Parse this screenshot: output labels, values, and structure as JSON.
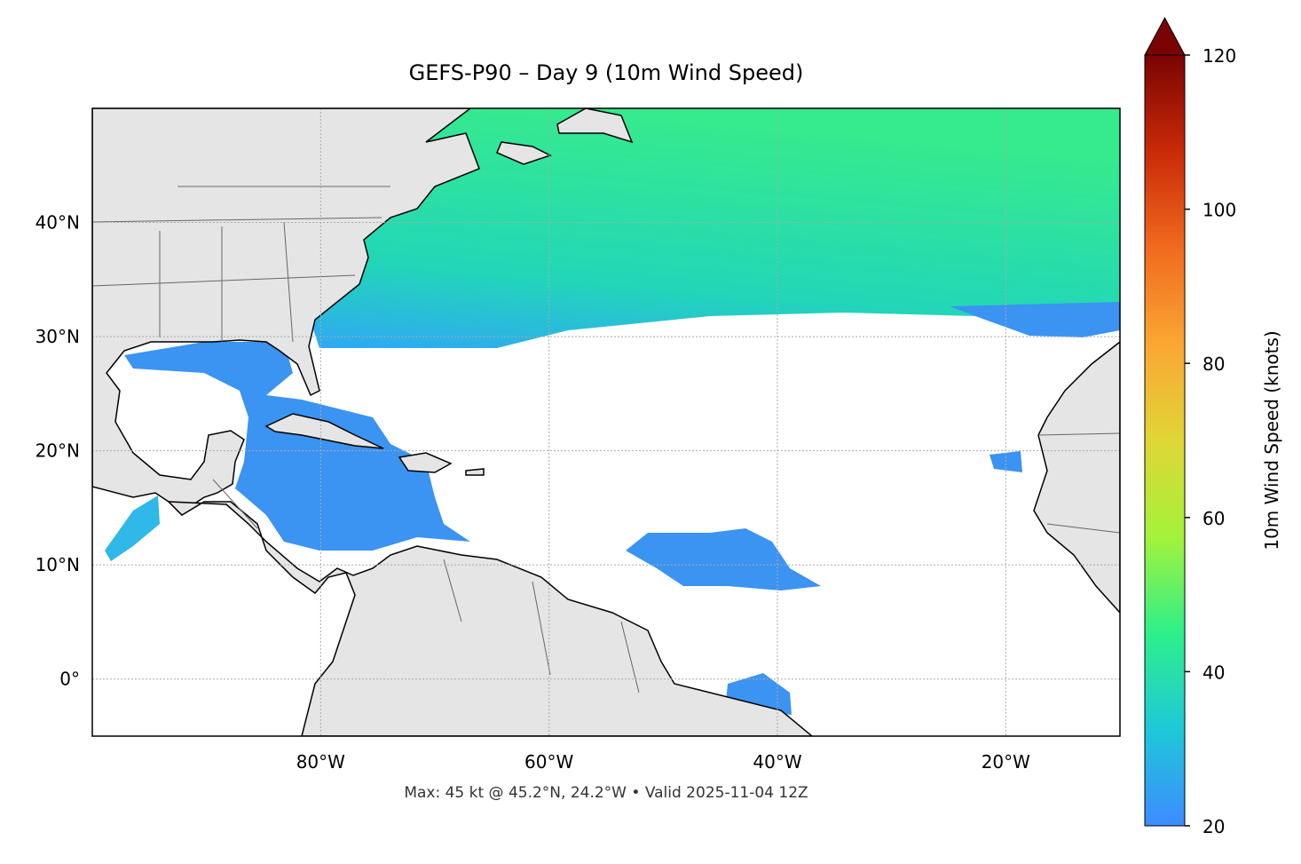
{
  "chart_data": {
    "type": "map",
    "title": "GEFS-P90 – Day 9 (10m Wind Speed)",
    "footnote": "Max: 45 kt @ 45.2°N, 24.2°W • Valid 2025-11-04 12Z",
    "xlim": [
      -100,
      -10
    ],
    "ylim": [
      -5,
      50
    ],
    "xticks": [
      {
        "value": -80,
        "label": "80°W"
      },
      {
        "value": -60,
        "label": "60°W"
      },
      {
        "value": -40,
        "label": "40°W"
      },
      {
        "value": -20,
        "label": "20°W"
      }
    ],
    "yticks": [
      {
        "value": 0,
        "label": "0°"
      },
      {
        "value": 10,
        "label": "10°N"
      },
      {
        "value": 20,
        "label": "20°N"
      },
      {
        "value": 30,
        "label": "30°N"
      },
      {
        "value": 40,
        "label": "40°N"
      }
    ],
    "grid": true,
    "colorbar": {
      "label": "10m Wind Speed (knots)",
      "lim": [
        20,
        120
      ],
      "ticks": [
        20,
        40,
        60,
        80,
        100,
        120
      ],
      "extend": "max",
      "colors": [
        "#3d8bff",
        "#1ec8d8",
        "#2df08a",
        "#a4f23a",
        "#e0d636",
        "#fba633",
        "#f06a1e",
        "#c92a08",
        "#7a0403"
      ]
    }
  }
}
